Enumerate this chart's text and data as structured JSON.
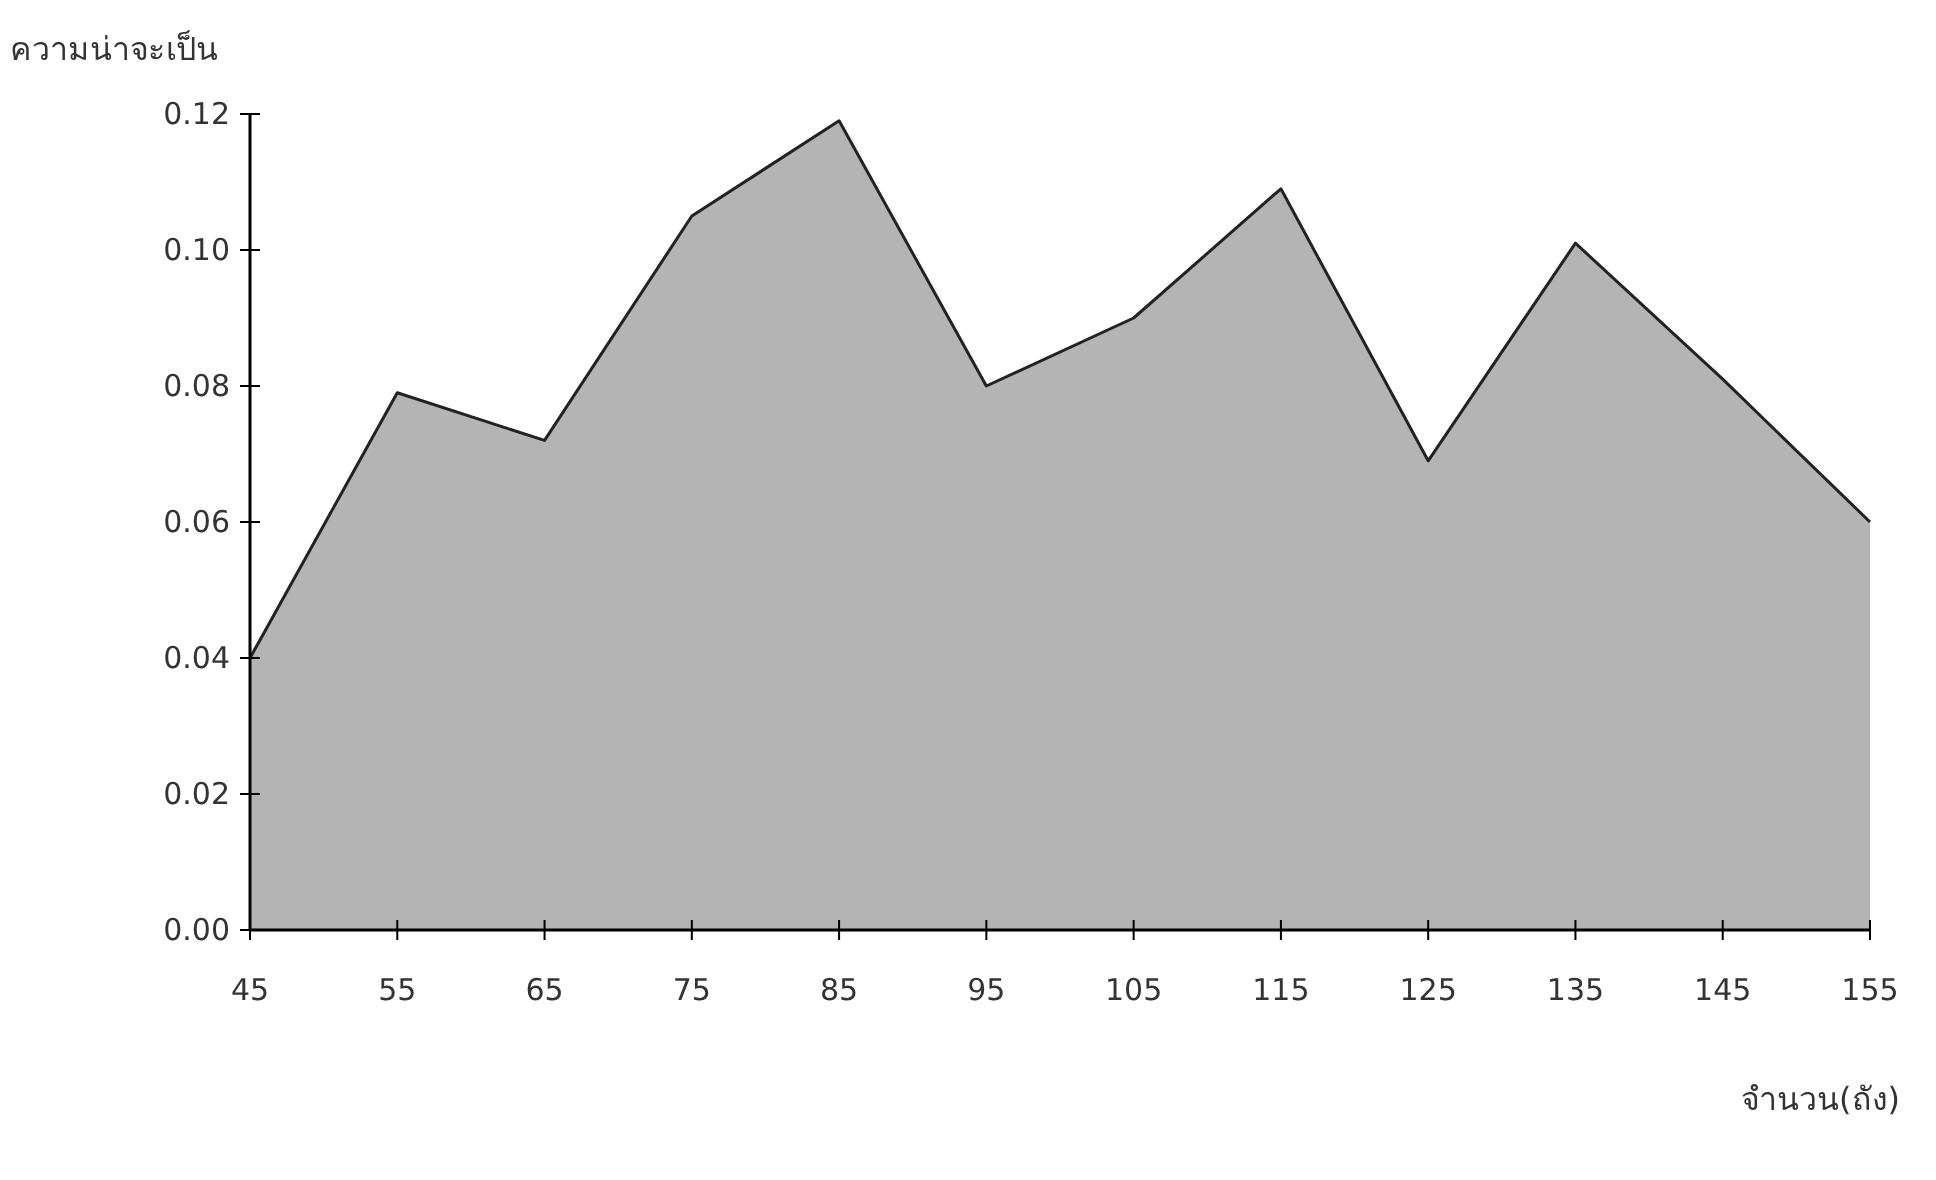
{
  "chart_data": {
    "type": "area",
    "ylabel": "ความน่าจะเป็น",
    "xlabel": "จำนวน(ถัง)",
    "x": [
      45,
      55,
      65,
      75,
      85,
      95,
      105,
      115,
      125,
      135,
      145,
      155
    ],
    "series": [
      {
        "color": "#b4b4b4",
        "values": [
          0.04,
          0.079,
          0.072,
          0.105,
          0.119,
          0.08,
          0.09,
          0.109,
          0.069,
          0.101,
          0.081,
          0.06
        ]
      }
    ],
    "xlim": [
      45,
      155
    ],
    "xticks": [
      45,
      55,
      65,
      75,
      85,
      95,
      105,
      115,
      125,
      135,
      145,
      155
    ],
    "ylim": [
      0,
      0.12
    ],
    "yticks": [
      {
        "value": 0,
        "label": "0.00"
      },
      {
        "value": 0.02,
        "label": "0.02"
      },
      {
        "value": 0.04,
        "label": "0.04"
      },
      {
        "value": 0.06,
        "label": "0.06"
      },
      {
        "value": 0.08,
        "label": "0.08"
      },
      {
        "value": 0.1,
        "label": "0.10"
      },
      {
        "value": 0.12,
        "label": "0.12"
      }
    ],
    "grid": false
  }
}
